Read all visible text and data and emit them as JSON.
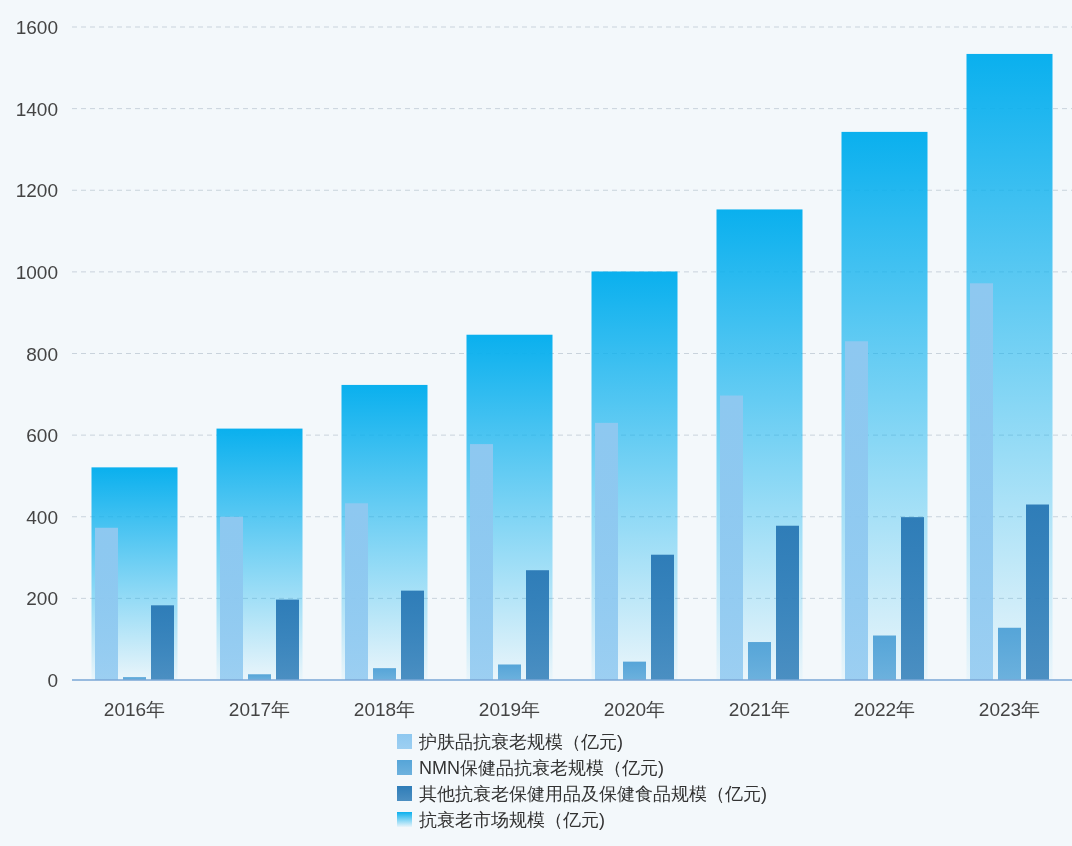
{
  "chart_data": {
    "type": "bar",
    "categories": [
      "2016年",
      "2017年",
      "2018年",
      "2019年",
      "2020年",
      "2021年",
      "2022年",
      "2023年"
    ],
    "series": [
      {
        "name": "护肤品抗衰老规模（亿元)",
        "color": "#8ec8f0",
        "values": [
          373,
          400,
          433,
          578,
          630,
          697,
          830,
          972
        ]
      },
      {
        "name": "NMN保健品抗衰老规模（亿元)",
        "color": "#56a5d8",
        "values": [
          7,
          14,
          29,
          38,
          45,
          93,
          109,
          128
        ]
      },
      {
        "name": "其他抗衰老保健用品及保健食品规模（亿元)",
        "color": "#2f7db8",
        "values": [
          183,
          197,
          219,
          269,
          307,
          378,
          399,
          430
        ]
      },
      {
        "name": "抗衰老市场规模（亿元)",
        "color": "#0ab0ee",
        "values": [
          521,
          616,
          723,
          846,
          1001,
          1153,
          1343,
          1534
        ]
      }
    ],
    "ylim": [
      0,
      1600
    ],
    "yticks": [
      0,
      200,
      400,
      600,
      800,
      1000,
      1200,
      1400,
      1600
    ],
    "grid": "y",
    "legend": "bottom"
  }
}
